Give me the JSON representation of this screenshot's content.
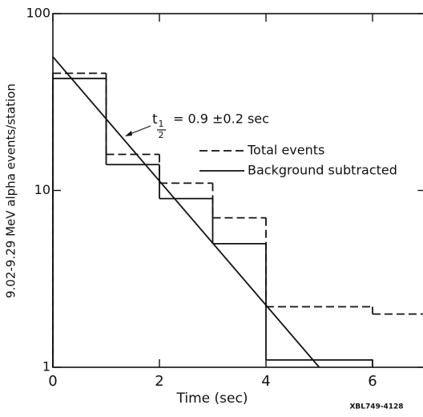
{
  "chart_data": {
    "type": "step",
    "xlabel": "Time (sec)",
    "ylabel": "9.02-9.29 MeV alpha events/station",
    "xlim": [
      0,
      7
    ],
    "ylim": [
      1,
      100
    ],
    "log_y": true,
    "xticks": [
      0,
      2,
      4,
      6
    ],
    "yticks": [
      1,
      10,
      100
    ],
    "series": [
      {
        "name": "Total events",
        "color": "#111111",
        "dash": true,
        "bins": [
          0,
          1,
          2,
          3,
          4,
          6,
          7
        ],
        "values": [
          46,
          16,
          11,
          7,
          2.2,
          2
        ]
      },
      {
        "name": "Background subtracted",
        "color": "#111111",
        "dash": false,
        "bins": [
          0,
          1,
          2,
          3,
          4,
          6
        ],
        "values": [
          43,
          14,
          9,
          5,
          1.1
        ]
      }
    ],
    "fit": {
      "color": "#111111",
      "x": [
        0,
        5
      ],
      "values": [
        57,
        1
      ]
    },
    "annotation": {
      "symbol": "t",
      "sub_top": "1",
      "sub_bottom": "2",
      "text": "= 0.9 ±0.2 sec"
    },
    "credit": "XBL749-4128"
  }
}
